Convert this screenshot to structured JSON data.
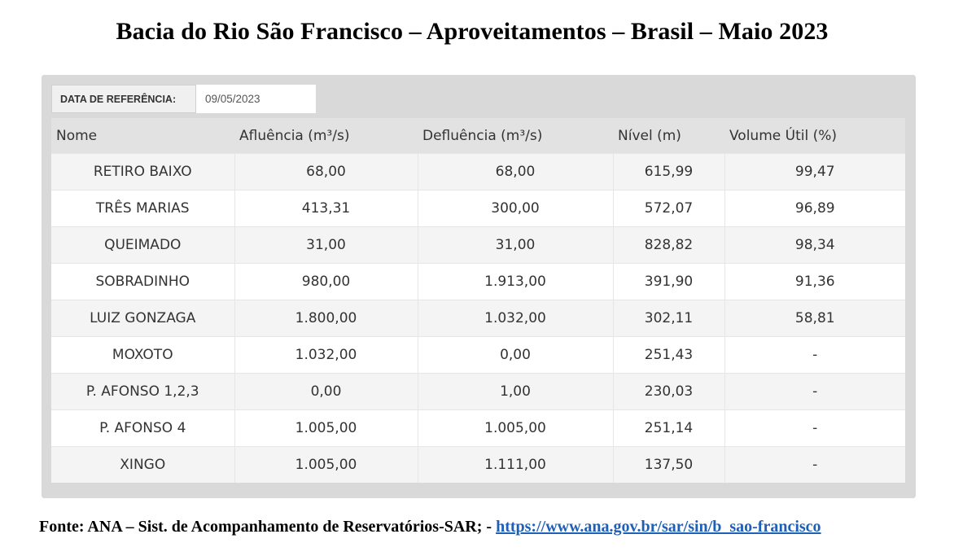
{
  "title": "Bacia do Rio São Francisco – Aproveitamentos – Brasil – Maio 2023",
  "reference": {
    "label": "DATA DE REFERÊNCIA:",
    "value": "09/05/2023"
  },
  "table": {
    "headers": [
      "Nome",
      "Afluência (m³/s)",
      "Defluência (m³/s)",
      "Nível (m)",
      "Volume Útil (%)"
    ],
    "rows": [
      [
        "RETIRO BAIXO",
        "68,00",
        "68,00",
        "615,99",
        "99,47"
      ],
      [
        "TRÊS MARIAS",
        "413,31",
        "300,00",
        "572,07",
        "96,89"
      ],
      [
        "QUEIMADO",
        "31,00",
        "31,00",
        "828,82",
        "98,34"
      ],
      [
        "SOBRADINHO",
        "980,00",
        "1.913,00",
        "391,90",
        "91,36"
      ],
      [
        "LUIZ GONZAGA",
        "1.800,00",
        "1.032,00",
        "302,11",
        "58,81"
      ],
      [
        "MOXOTO",
        "1.032,00",
        "0,00",
        "251,43",
        "-"
      ],
      [
        "P. AFONSO 1,2,3",
        "0,00",
        "1,00",
        "230,03",
        "-"
      ],
      [
        "P. AFONSO 4",
        "1.005,00",
        "1.005,00",
        "251,14",
        "-"
      ],
      [
        "XINGO",
        "1.005,00",
        "1.111,00",
        "137,50",
        "-"
      ]
    ]
  },
  "source": {
    "text": "Fonte: ANA – Sist. de Acompanhamento de Reservatórios-SAR;  - ",
    "link": "https://www.ana.gov.br/sar/sin/b_sao-francisco"
  }
}
